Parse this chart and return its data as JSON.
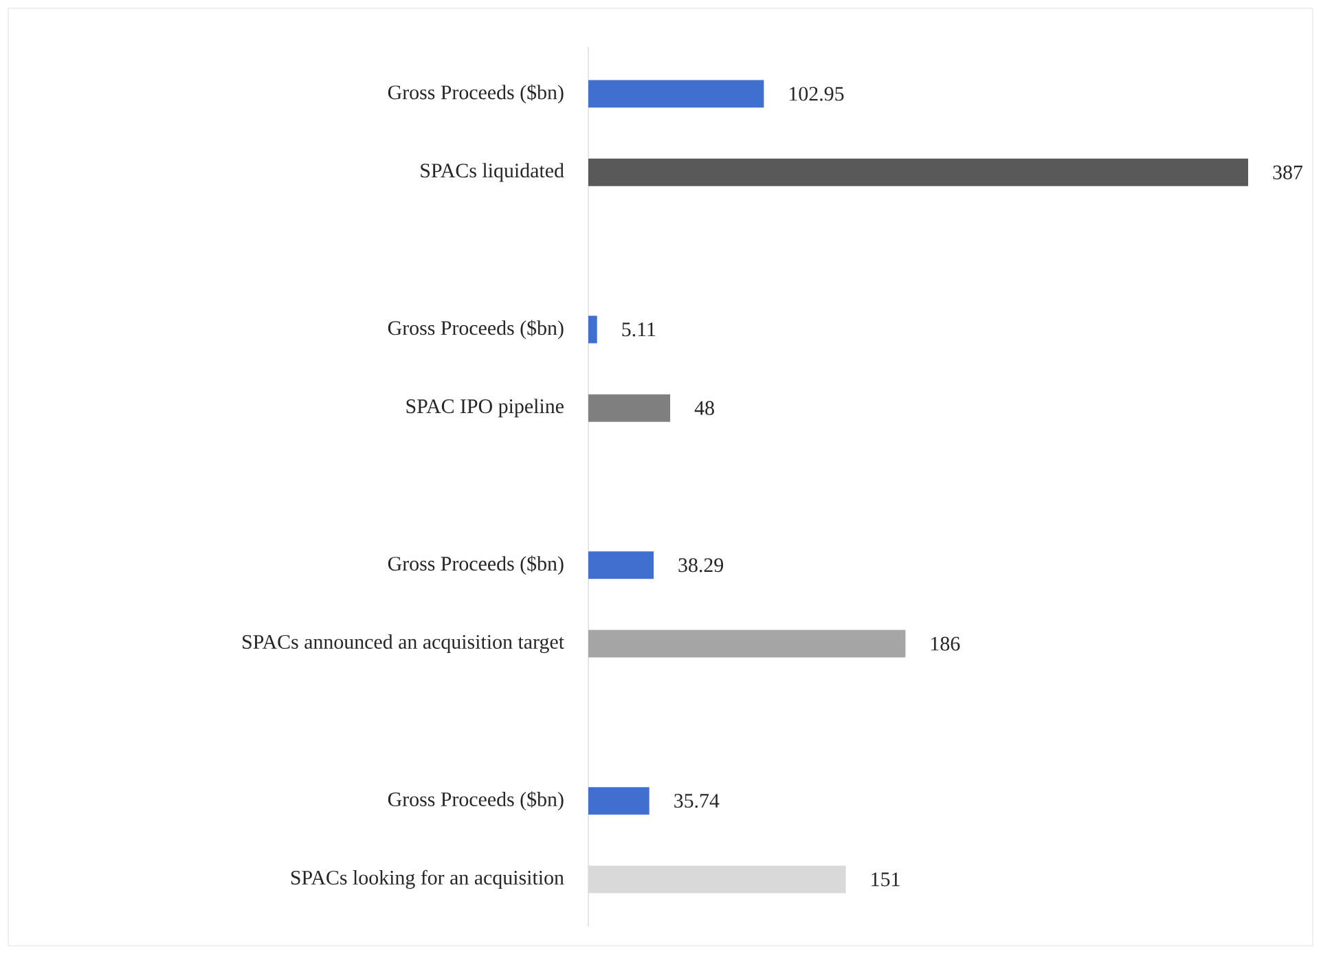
{
  "chart_data": {
    "type": "bar",
    "orientation": "horizontal",
    "data_labels": true,
    "categories": [
      "Gross Proceeds ($bn)",
      "SPACs liquidated",
      "Gross Proceeds ($bn)",
      "SPAC IPO pipeline",
      "Gross Proceeds ($bn)",
      "SPACs announced an acquisition target",
      "Gross Proceeds ($bn)",
      "SPACs looking for an acquisition"
    ],
    "values": [
      102.95,
      387,
      5.11,
      48,
      38.29,
      186,
      35.74,
      151
    ],
    "colors": [
      "#3f6fcf",
      "#595959",
      "#3f6fcf",
      "#7f7f7f",
      "#3f6fcf",
      "#a5a5a5",
      "#3f6fcf",
      "#d9d9d9"
    ]
  }
}
